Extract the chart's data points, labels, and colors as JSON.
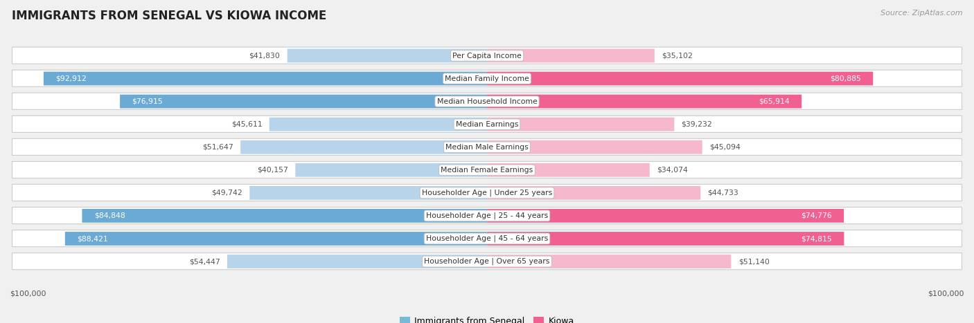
{
  "title": "IMMIGRANTS FROM SENEGAL VS KIOWA INCOME",
  "source": "Source: ZipAtlas.com",
  "categories": [
    "Per Capita Income",
    "Median Family Income",
    "Median Household Income",
    "Median Earnings",
    "Median Male Earnings",
    "Median Female Earnings",
    "Householder Age | Under 25 years",
    "Householder Age | 25 - 44 years",
    "Householder Age | 45 - 64 years",
    "Householder Age | Over 65 years"
  ],
  "senegal_values": [
    41830,
    92912,
    76915,
    45611,
    51647,
    40157,
    49742,
    84848,
    88421,
    54447
  ],
  "kiowa_values": [
    35102,
    80885,
    65914,
    39232,
    45094,
    34074,
    44733,
    74776,
    74815,
    51140
  ],
  "senegal_labels": [
    "$41,830",
    "$92,912",
    "$76,915",
    "$45,611",
    "$51,647",
    "$40,157",
    "$49,742",
    "$84,848",
    "$88,421",
    "$54,447"
  ],
  "kiowa_labels": [
    "$35,102",
    "$80,885",
    "$65,914",
    "$39,232",
    "$45,094",
    "$34,074",
    "$44,733",
    "$74,776",
    "$74,815",
    "$51,140"
  ],
  "senegal_inside": [
    false,
    true,
    true,
    false,
    false,
    false,
    false,
    true,
    true,
    false
  ],
  "kiowa_inside": [
    false,
    true,
    true,
    false,
    false,
    false,
    false,
    true,
    true,
    false
  ],
  "max_value": 100000,
  "senegal_color_light": "#b8d4ea",
  "senegal_color_dark": "#6aaad4",
  "kiowa_color_light": "#f5b8cc",
  "kiowa_color_dark": "#f06090",
  "bg_color": "#f0f0f0",
  "row_bg_light": "#f8f8f8",
  "row_border": "#d8d8d8",
  "legend_senegal_color": "#7ab8d8",
  "legend_kiowa_color": "#f06090",
  "inside_threshold": 60000
}
